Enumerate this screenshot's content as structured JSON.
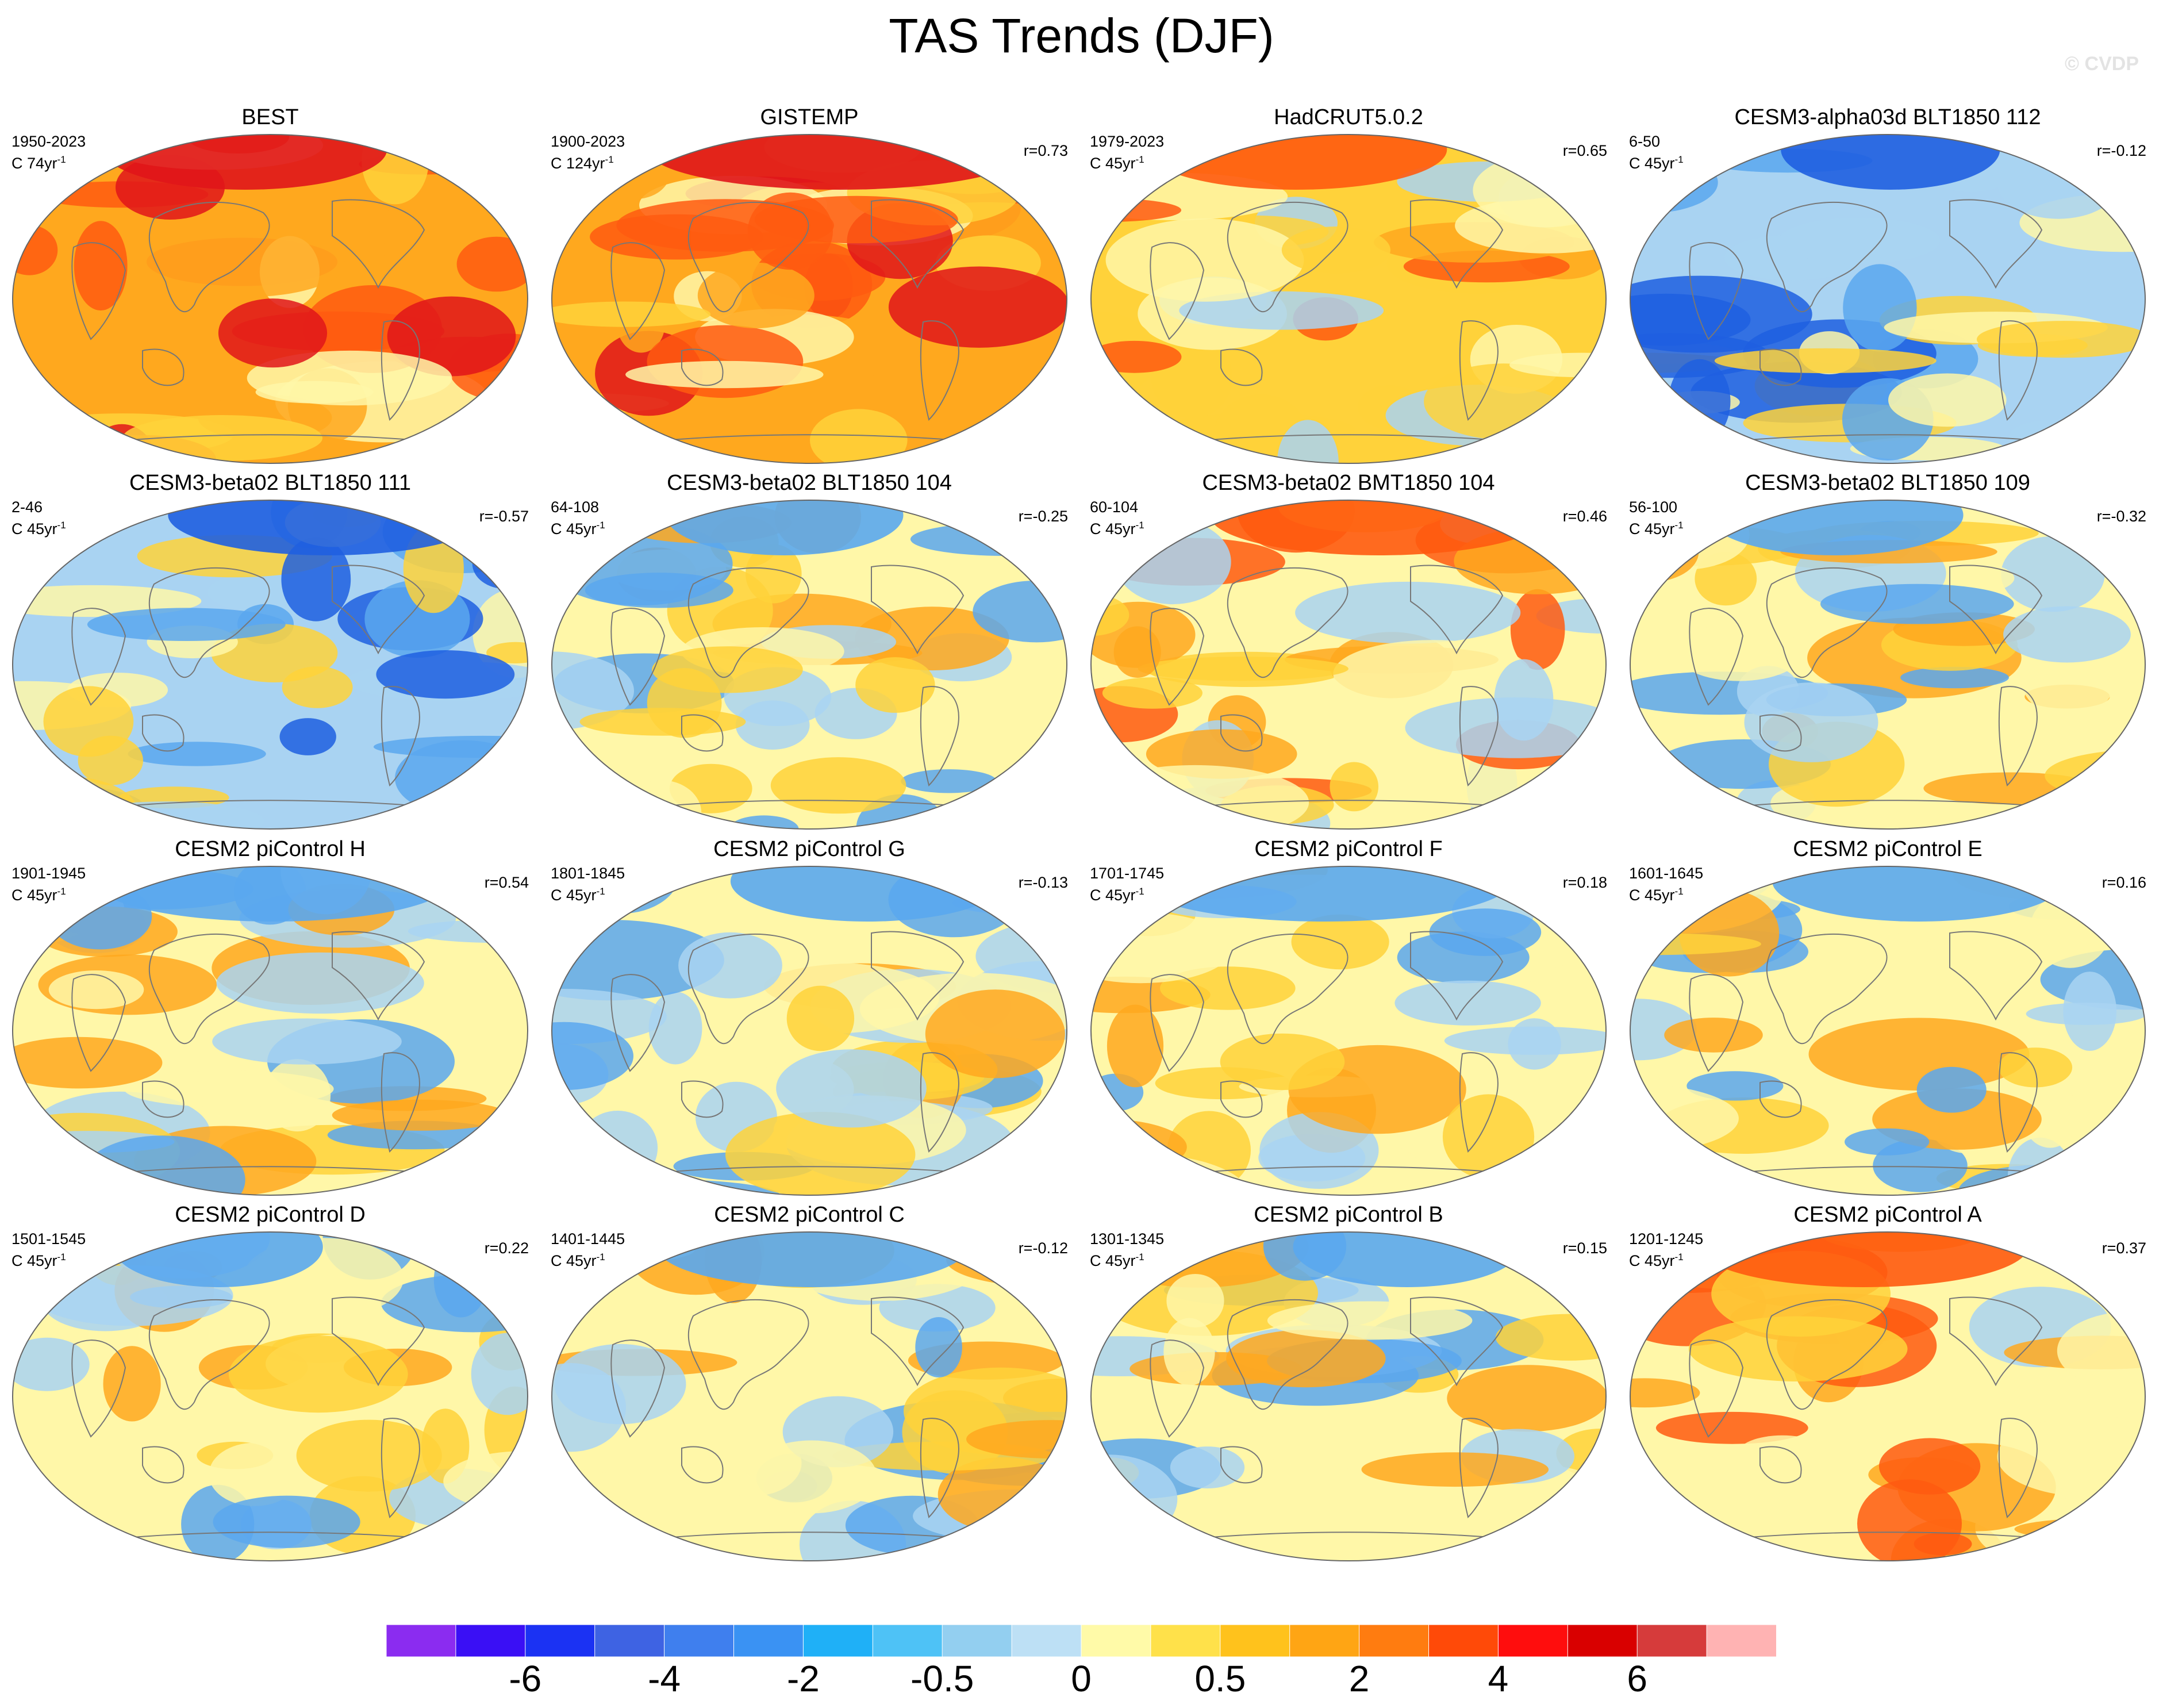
{
  "title": "TAS Trends (DJF)",
  "copyright": "© CVDP",
  "colors": {
    "neg_deep": "#1f5fe0",
    "neg_mid": "#5aa7ee",
    "neg_light": "#a9d3f2",
    "neutral": "#fff7a8",
    "pos_light": "#ffd23a",
    "pos_mid": "#ffa81e",
    "pos_deep": "#ff5a10",
    "pos_hot": "#e0151a",
    "coast": "#777777"
  },
  "panels": [
    {
      "title": "BEST",
      "period": "1950-2023",
      "units": "C 74yr",
      "unit_exp": "-1",
      "corr": "",
      "tone": "hot"
    },
    {
      "title": "GISTEMP",
      "period": "1900-2023",
      "units": "C 124yr",
      "unit_exp": "-1",
      "corr": "r=0.73",
      "tone": "hot"
    },
    {
      "title": "HadCRUT5.0.2",
      "period": "1979-2023",
      "units": "C 45yr",
      "unit_exp": "-1",
      "corr": "r=0.65",
      "tone": "warm"
    },
    {
      "title": "CESM3-alpha03d BLT1850 112",
      "period": "6-50",
      "units": "C 45yr",
      "unit_exp": "-1",
      "corr": "r=-0.12",
      "tone": "cool"
    },
    {
      "title": "CESM3-beta02 BLT1850 111",
      "period": "2-46",
      "units": "C 45yr",
      "unit_exp": "-1",
      "corr": "r=-0.57",
      "tone": "cool"
    },
    {
      "title": "CESM3-beta02 BLT1850 104",
      "period": "64-108",
      "units": "C 45yr",
      "unit_exp": "-1",
      "corr": "r=-0.25",
      "tone": "mixed"
    },
    {
      "title": "CESM3-beta02 BMT1850 104",
      "period": "60-104",
      "units": "C 45yr",
      "unit_exp": "-1",
      "corr": "r=0.46",
      "tone": "warmish"
    },
    {
      "title": "CESM3-beta02 BLT1850 109",
      "period": "56-100",
      "units": "C 45yr",
      "unit_exp": "-1",
      "corr": "r=-0.32",
      "tone": "mixed"
    },
    {
      "title": "CESM2 piControl H",
      "period": "1901-1945",
      "units": "C 45yr",
      "unit_exp": "-1",
      "corr": "r=0.54",
      "tone": "mixed"
    },
    {
      "title": "CESM2 piControl G",
      "period": "1801-1845",
      "units": "C 45yr",
      "unit_exp": "-1",
      "corr": "r=-0.13",
      "tone": "mixed"
    },
    {
      "title": "CESM2 piControl F",
      "period": "1701-1745",
      "units": "C 45yr",
      "unit_exp": "-1",
      "corr": "r=0.18",
      "tone": "mixed"
    },
    {
      "title": "CESM2 piControl E",
      "period": "1601-1645",
      "units": "C 45yr",
      "unit_exp": "-1",
      "corr": "r=0.16",
      "tone": "mixed"
    },
    {
      "title": "CESM2 piControl D",
      "period": "1501-1545",
      "units": "C 45yr",
      "unit_exp": "-1",
      "corr": "r=0.22",
      "tone": "mixed"
    },
    {
      "title": "CESM2 piControl C",
      "period": "1401-1445",
      "units": "C 45yr",
      "unit_exp": "-1",
      "corr": "r=-0.12",
      "tone": "mixed"
    },
    {
      "title": "CESM2 piControl B",
      "period": "1301-1345",
      "units": "C 45yr",
      "unit_exp": "-1",
      "corr": "r=0.15",
      "tone": "mixed"
    },
    {
      "title": "CESM2 piControl A",
      "period": "1201-1245",
      "units": "C 45yr",
      "unit_exp": "-1",
      "corr": "r=0.37",
      "tone": "warmish"
    }
  ],
  "colorbar": {
    "colors": [
      "#8b2cf0",
      "#3a0ff5",
      "#1b32f3",
      "#3e63e3",
      "#3f7fee",
      "#3a92f3",
      "#1fb0f7",
      "#4ec2f6",
      "#93cff0",
      "#bde0f5",
      "#fffaa8",
      "#ffe14a",
      "#ffc21c",
      "#ffa514",
      "#ff7c10",
      "#ff4a08",
      "#ff0d0d",
      "#d90000",
      "#d63b3b",
      "#ffb3b3"
    ],
    "tick_labels": [
      "-6",
      "-4",
      "-2",
      "-0.5",
      "0",
      "0.5",
      "2",
      "4",
      "6"
    ],
    "tick_boundaries": [
      2,
      4,
      6,
      8,
      10,
      12,
      14,
      16,
      18
    ]
  }
}
